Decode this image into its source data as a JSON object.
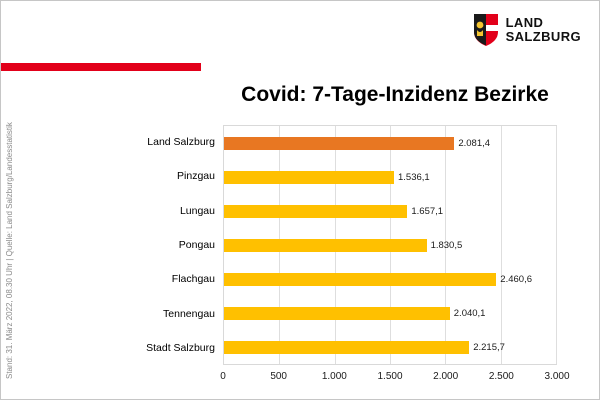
{
  "logo": {
    "line1": "LAND",
    "line2": "SALZBURG"
  },
  "title": "Covid: 7-Tage-Inzidenz Bezirke",
  "source": "Stand: 31. März  2022, 08.30 Uhr | Quelle: Land Salzburg/Landesstatistik",
  "colors": {
    "accent_red": "#E2001A",
    "bar_yellow": "#FFC000",
    "bar_orange": "#E87722",
    "grid_gray": "#DEDEDE"
  },
  "chart_data": {
    "type": "bar",
    "orientation": "horizontal",
    "title": "Covid: 7-Tage-Inzidenz Bezirke",
    "categories": [
      "Land Salzburg",
      "Pinzgau",
      "Lungau",
      "Pongau",
      "Flachgau",
      "Tennengau",
      "Stadt Salzburg"
    ],
    "values": [
      2081.4,
      1536.1,
      1657.1,
      1830.5,
      2460.6,
      2040.1,
      2215.7
    ],
    "value_labels": [
      "2.081,4",
      "1.536,1",
      "1.657,1",
      "1.830,5",
      "2.460,6",
      "2.040,1",
      "2.215,7"
    ],
    "highlight_index": 0,
    "highlight_color": "#E87722",
    "bar_color": "#FFC000",
    "xlim": [
      0,
      3000
    ],
    "ticks": [
      0,
      500,
      1000,
      1500,
      2000,
      2500,
      3000
    ],
    "tick_labels": [
      "0",
      "500",
      "1.000",
      "1.500",
      "2.000",
      "2.500",
      "3.000"
    ],
    "xlabel": "",
    "ylabel": "",
    "grid": true,
    "legend": false
  }
}
